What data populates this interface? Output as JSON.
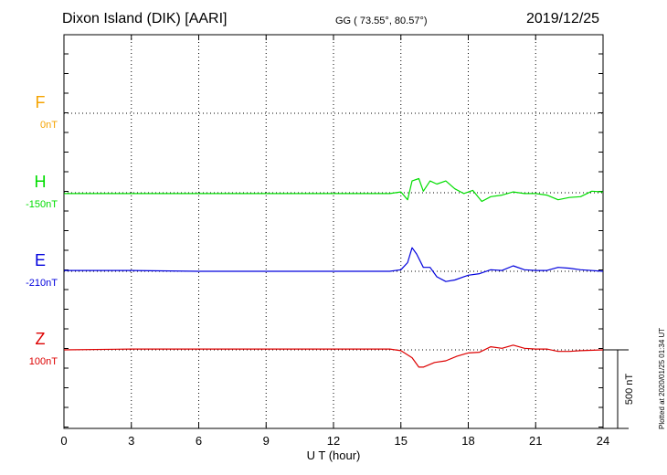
{
  "header": {
    "station": "Dixon Island (DIK)  [AARI]",
    "coords": "GG ( 73.55°,  80.57°)",
    "date": "2019/12/25"
  },
  "plotted_note": "Plotted at 2020/01/25 01:34 UT",
  "colors": {
    "F": "#f5a300",
    "H": "#00dd00",
    "E": "#0000dd",
    "Z": "#dd0000"
  },
  "chart_data": {
    "type": "line",
    "title": "Dixon Island (DIK)  [AARI]",
    "xlabel": "U T (hour)",
    "xlim": [
      0,
      24
    ],
    "x_ticks": [
      0,
      3,
      6,
      9,
      12,
      15,
      18,
      21,
      24
    ],
    "scale_bar_label": "500 nT",
    "scale_bar_nT": 500,
    "series": [
      {
        "name": "F",
        "baseline_label": "0nT",
        "color": "#f5a300",
        "x": [],
        "values": []
      },
      {
        "name": "H",
        "baseline_label": "-150nT",
        "color": "#00dd00",
        "x": [
          0,
          3,
          6,
          9,
          12,
          14.5,
          15,
          15.3,
          15.5,
          15.8,
          16,
          16.3,
          16.6,
          17,
          17.4,
          17.8,
          18.2,
          18.6,
          19,
          19.5,
          20,
          20.5,
          21,
          21.5,
          22,
          22.5,
          23,
          23.5,
          24
        ],
        "values": [
          -5,
          -5,
          -5,
          -5,
          -5,
          -5,
          5,
          -45,
          75,
          90,
          10,
          75,
          55,
          75,
          25,
          -5,
          15,
          -55,
          -25,
          -15,
          5,
          -5,
          -5,
          -15,
          -45,
          -30,
          -25,
          10,
          5
        ]
      },
      {
        "name": "E",
        "baseline_label": "-210nT",
        "color": "#0000dd",
        "x": [
          0,
          3,
          6,
          9,
          12,
          14.5,
          15,
          15.3,
          15.5,
          15.7,
          16,
          16.3,
          16.6,
          17,
          17.4,
          18,
          18.5,
          19,
          19.5,
          20,
          20.5,
          21,
          21.5,
          22,
          22.5,
          23,
          24
        ],
        "values": [
          5,
          5,
          0,
          0,
          0,
          0,
          10,
          55,
          150,
          110,
          25,
          25,
          -35,
          -65,
          -55,
          -25,
          -15,
          10,
          5,
          35,
          10,
          5,
          5,
          25,
          20,
          10,
          0
        ]
      },
      {
        "name": "Z",
        "baseline_label": "100nT",
        "color": "#dd0000",
        "x": [
          0,
          3,
          6,
          9,
          12,
          14.5,
          15,
          15.5,
          15.8,
          16,
          16.5,
          17,
          17.5,
          18,
          18.5,
          19,
          19.5,
          20,
          20.5,
          21,
          21.5,
          22,
          22.5,
          23,
          24
        ],
        "values": [
          0,
          5,
          5,
          5,
          5,
          5,
          -5,
          -50,
          -110,
          -110,
          -80,
          -70,
          -40,
          -20,
          -15,
          20,
          10,
          30,
          10,
          5,
          5,
          -10,
          -10,
          -5,
          0
        ]
      }
    ]
  }
}
